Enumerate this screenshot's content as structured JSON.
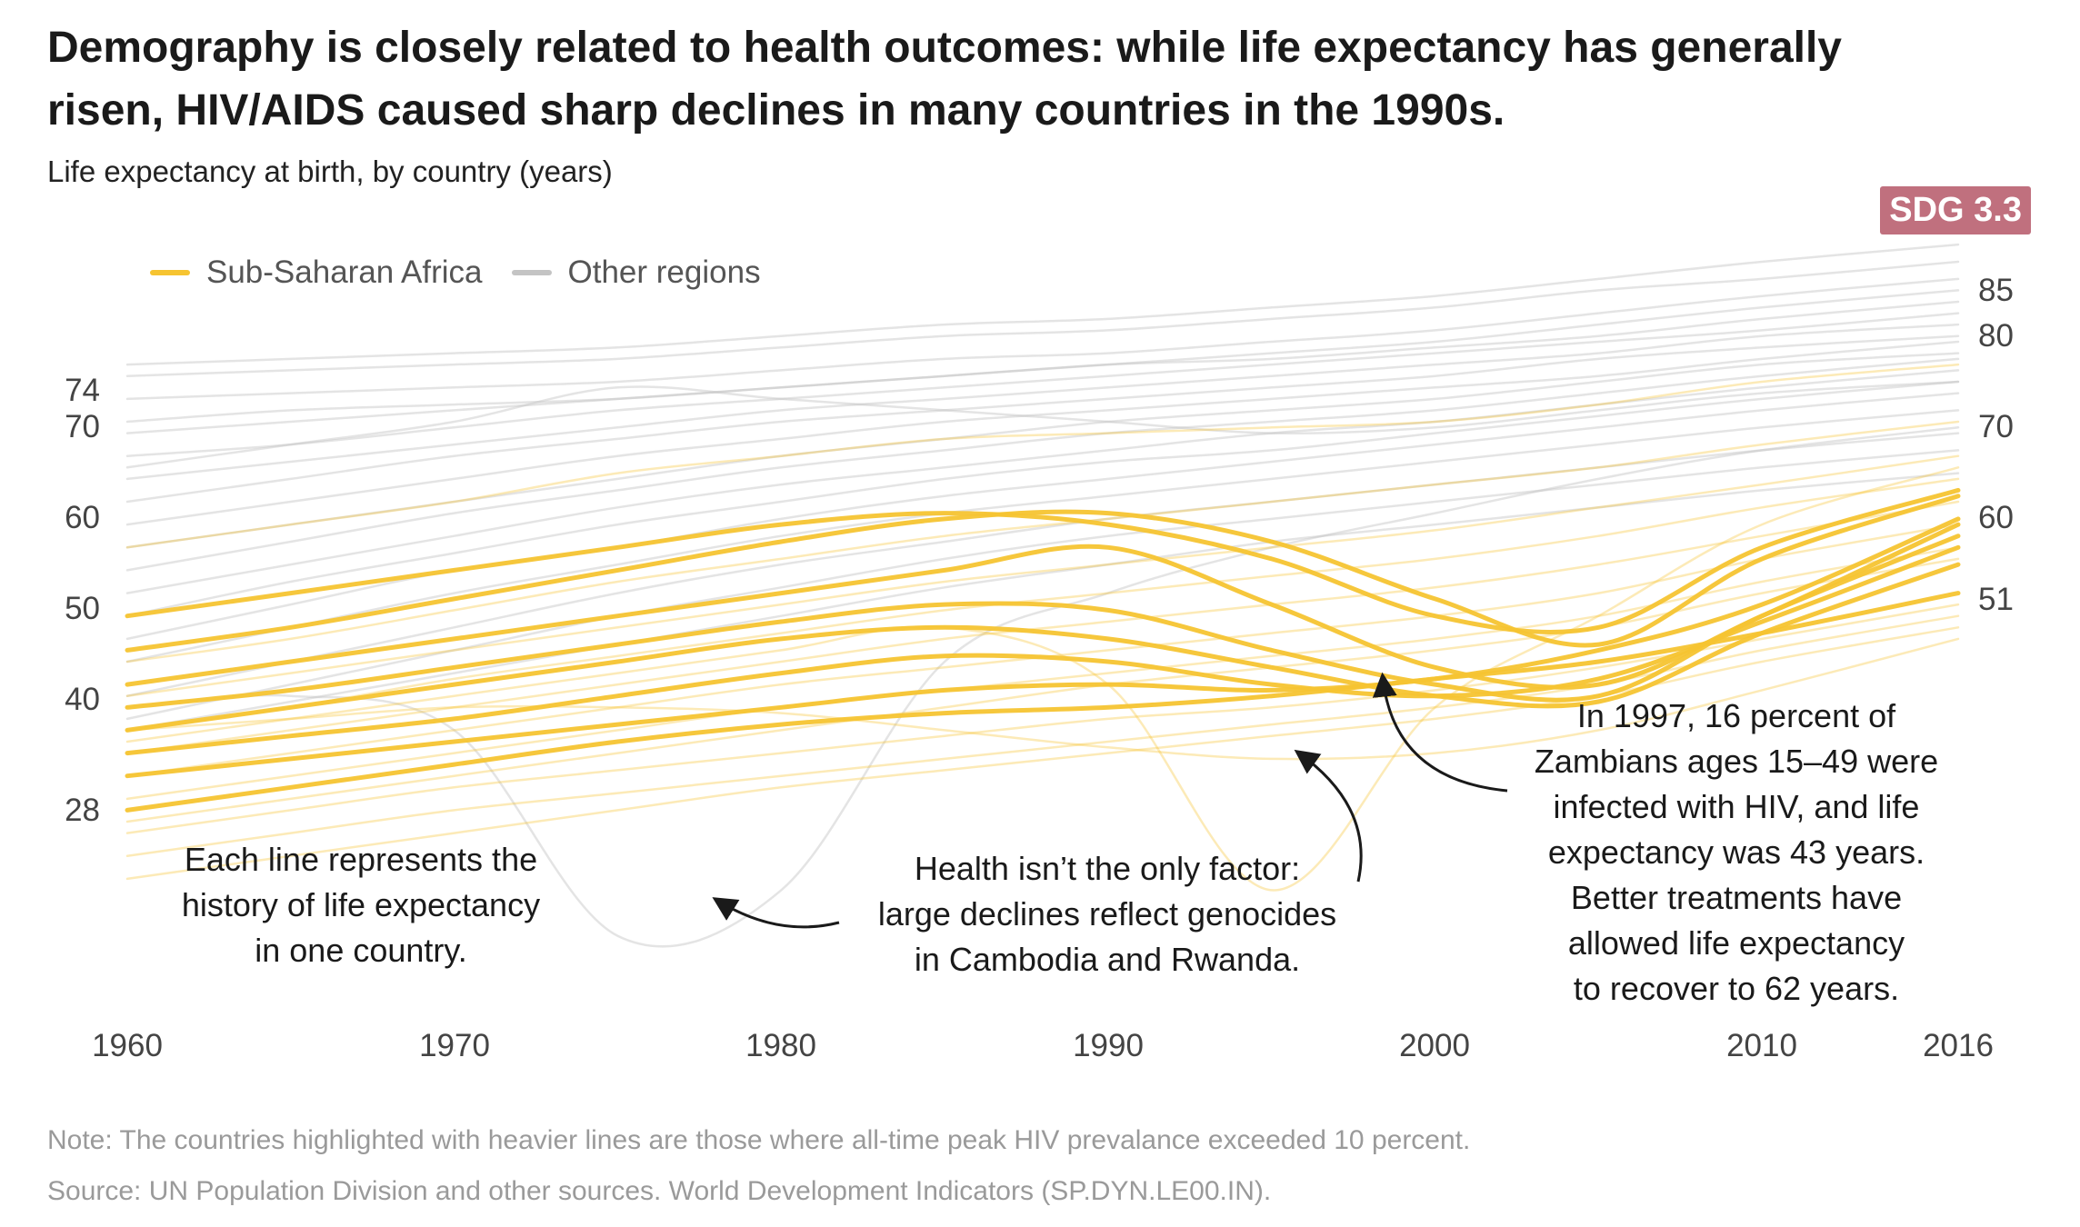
{
  "header": {
    "title": "Demography is closely related to health outcomes: while life expectancy has generally risen, HIV/AIDS caused sharp declines in many countries in the 1990s.",
    "subtitle": "Life expectancy at birth, by country (years)",
    "badge": "SDG 3.3",
    "badge_color": "#c0707e"
  },
  "legend": [
    {
      "label": "Sub-Saharan Africa",
      "color": "#f6c431"
    },
    {
      "label": "Other regions",
      "color": "#c4c4c4"
    }
  ],
  "annotations": [
    {
      "lines": [
        "Each line represents the",
        "history of life expectancy",
        "in one country."
      ]
    },
    {
      "lines": [
        "Health isn’t the only factor:",
        "large declines reflect genocides",
        "in Cambodia and Rwanda."
      ]
    },
    {
      "lines": [
        "In 1997, 16 percent of",
        "Zambians ages 15–49 were",
        "infected with HIV, and life",
        "expectancy was 43 years.",
        "Better treatments have",
        "allowed life expectancy",
        "to recover to 62 years."
      ]
    }
  ],
  "footer": {
    "note": "Note: The countries highlighted with heavier lines are those where all-time peak HIV prevalance exceeded 10 percent.",
    "source": "Source: UN Population Division and other sources. World Development Indicators (SP.DYN.LE00.IN)."
  },
  "chart_data": {
    "type": "line",
    "x_ticks": [
      "1960",
      "1970",
      "1980",
      "1990",
      "2000",
      "2010",
      "2016"
    ],
    "x_range": [
      1960,
      2016
    ],
    "y_range": [
      20,
      90
    ],
    "left_labels": [
      "74",
      "70",
      "60",
      "50",
      "40",
      "28"
    ],
    "right_labels": [
      "85",
      "80",
      "70",
      "60",
      "51"
    ],
    "grid": false,
    "legend_position": "top-left",
    "x": [
      1960,
      1965,
      1970,
      1975,
      1980,
      1985,
      1990,
      1995,
      2000,
      2005,
      2010,
      2016
    ],
    "series": [
      {
        "group": "other",
        "weight": "light",
        "values": [
          74,
          74.5,
          75,
          75.5,
          76.5,
          77.5,
          78,
          79,
          80,
          81.5,
          83,
          84.5
        ]
      },
      {
        "group": "other",
        "weight": "light",
        "values": [
          73,
          73.5,
          74,
          74.5,
          75.5,
          76.5,
          77,
          78,
          79,
          80.5,
          81.5,
          83
        ]
      },
      {
        "group": "other",
        "weight": "light",
        "values": [
          71,
          71.5,
          72,
          72.5,
          73.5,
          74.5,
          75,
          76,
          77,
          78.5,
          80,
          81.5
        ]
      },
      {
        "group": "other",
        "weight": "light",
        "values": [
          69,
          70,
          70.5,
          71,
          72,
          73,
          74,
          75,
          76,
          77.5,
          79,
          80.5
        ]
      },
      {
        "group": "other",
        "weight": "light",
        "values": [
          68,
          69,
          70,
          71,
          72,
          73,
          74,
          74.5,
          75.5,
          76.5,
          78,
          79.5
        ]
      },
      {
        "group": "other",
        "weight": "light",
        "values": [
          66,
          67,
          68.5,
          70,
          71,
          72,
          73,
          74,
          75,
          76,
          77,
          78.5
        ]
      },
      {
        "group": "other",
        "weight": "light",
        "values": [
          64,
          65.5,
          67,
          68.5,
          70,
          71,
          72,
          73,
          74,
          75,
          76.5,
          77.5
        ]
      },
      {
        "group": "other",
        "weight": "light",
        "values": [
          62,
          64,
          66,
          67.5,
          69,
          70,
          71,
          72,
          73,
          74.5,
          75.5,
          76.5
        ]
      },
      {
        "group": "other",
        "weight": "light",
        "values": [
          60,
          62,
          64,
          66,
          67.5,
          69,
          70,
          71,
          72,
          73,
          74.5,
          76
        ]
      },
      {
        "group": "other",
        "weight": "light",
        "values": [
          58,
          60,
          62,
          64,
          66,
          67.5,
          69,
          70,
          71,
          72.5,
          74,
          75
        ]
      },
      {
        "group": "other",
        "weight": "light",
        "values": [
          56,
          58.5,
          61,
          63,
          65,
          66.5,
          68,
          69,
          70,
          71.5,
          73,
          74.5
        ]
      },
      {
        "group": "other",
        "weight": "light",
        "values": [
          54,
          56.5,
          59,
          61.5,
          63.5,
          65,
          66.5,
          68,
          69,
          70.5,
          72,
          73.5
        ]
      },
      {
        "group": "other",
        "weight": "light",
        "values": [
          52,
          55,
          57.5,
          60,
          62,
          64,
          65.5,
          66.5,
          68,
          69.5,
          71,
          72.5
        ]
      },
      {
        "group": "other",
        "weight": "light",
        "values": [
          50,
          53,
          56,
          58,
          60.5,
          62.5,
          64,
          65.5,
          67,
          68.5,
          70,
          71.5
        ]
      },
      {
        "group": "other",
        "weight": "light",
        "values": [
          48,
          51,
          54,
          56.5,
          59,
          61,
          62.5,
          64,
          65.5,
          67,
          68.5,
          70
        ]
      },
      {
        "group": "other",
        "weight": "light",
        "values": [
          45,
          48,
          51,
          54,
          56.5,
          58.5,
          60.5,
          62,
          63.5,
          65,
          66.5,
          68
        ]
      },
      {
        "group": "other",
        "weight": "light",
        "values": [
          43,
          46,
          49,
          52,
          54.5,
          57,
          59,
          60.5,
          62,
          63.5,
          65,
          66.5
        ]
      },
      {
        "group": "other",
        "weight": "light",
        "values": [
          42,
          44.5,
          47,
          49.5,
          52,
          54.5,
          56.5,
          58.5,
          60,
          61.5,
          63,
          64.5
        ]
      },
      {
        "group": "other",
        "weight": "light",
        "values": [
          44,
          45,
          42,
          24,
          28,
          48,
          54,
          58,
          61,
          64,
          66.5,
          68.5
        ]
      },
      {
        "group": "other",
        "weight": "light",
        "values": [
          65,
          67,
          69,
          72,
          71,
          70,
          69,
          68,
          68.5,
          70,
          71.5,
          72.5
        ]
      },
      {
        "group": "ssa",
        "weight": "heavy",
        "values": [
          52,
          54,
          56,
          58,
          60,
          61,
          60,
          57,
          52,
          51,
          58,
          63
        ]
      },
      {
        "group": "ssa",
        "weight": "heavy",
        "values": [
          49,
          51,
          53.5,
          56,
          58.5,
          60.5,
          61,
          58.5,
          53.5,
          49.5,
          57,
          62.5
        ]
      },
      {
        "group": "ssa",
        "weight": "heavy",
        "values": [
          46,
          48,
          50,
          52,
          54,
          56,
          58,
          53,
          47.5,
          46,
          52,
          60
        ]
      },
      {
        "group": "ssa",
        "weight": "heavy",
        "values": [
          44,
          45.5,
          47.5,
          49.5,
          51.5,
          53,
          52.5,
          49,
          46,
          45,
          52,
          59
        ]
      },
      {
        "group": "ssa",
        "weight": "heavy",
        "values": [
          42,
          44,
          46,
          48,
          50,
          51,
          50,
          47.5,
          45,
          44.5,
          50.5,
          56.5
        ]
      },
      {
        "group": "ssa",
        "weight": "heavy",
        "values": [
          40,
          41.5,
          43,
          45,
          47,
          48.5,
          48,
          46,
          45,
          46.5,
          51.5,
          58
        ]
      },
      {
        "group": "ssa",
        "weight": "heavy",
        "values": [
          38,
          39.5,
          41,
          42.5,
          44,
          45.5,
          46,
          45.5,
          46.5,
          49,
          53,
          60.5
        ]
      },
      {
        "group": "ssa",
        "weight": "heavy",
        "values": [
          35,
          37,
          39,
          41,
          42.5,
          43.5,
          44,
          45,
          46.5,
          48,
          50.5,
          54
        ]
      },
      {
        "group": "ssa",
        "weight": "light",
        "values": [
          34,
          36,
          38,
          40,
          42,
          44,
          46,
          47.5,
          49,
          51,
          54,
          57
        ]
      },
      {
        "group": "ssa",
        "weight": "light",
        "values": [
          36,
          38,
          40,
          42,
          44,
          45.5,
          47,
          48.5,
          50,
          52,
          55,
          58
        ]
      },
      {
        "group": "ssa",
        "weight": "light",
        "values": [
          38,
          40,
          42,
          44,
          46,
          47.5,
          49,
          50.5,
          52,
          54,
          57,
          60
        ]
      },
      {
        "group": "ssa",
        "weight": "light",
        "values": [
          40,
          42,
          44,
          46,
          48,
          50,
          51.5,
          53,
          54.5,
          56.5,
          59,
          62
        ]
      },
      {
        "group": "ssa",
        "weight": "light",
        "values": [
          42,
          44,
          46.5,
          48.5,
          50.5,
          52.5,
          54,
          55.5,
          57,
          59,
          61.5,
          64
        ]
      },
      {
        "group": "ssa",
        "weight": "light",
        "values": [
          45,
          47,
          49,
          51,
          53,
          55,
          56.5,
          58,
          59.5,
          61.5,
          63.5,
          66
        ]
      },
      {
        "group": "ssa",
        "weight": "light",
        "values": [
          48,
          50,
          52.5,
          55,
          57,
          59,
          60.5,
          62,
          63.5,
          65,
          67,
          69
        ]
      },
      {
        "group": "ssa",
        "weight": "light",
        "values": [
          33,
          35,
          37,
          38.5,
          40,
          41.5,
          43,
          44,
          45.5,
          47.5,
          50,
          53
        ]
      },
      {
        "group": "ssa",
        "weight": "light",
        "values": [
          31,
          33,
          35,
          36.5,
          38,
          39.5,
          41,
          42.5,
          44,
          46,
          49,
          52
        ]
      },
      {
        "group": "ssa",
        "weight": "light",
        "values": [
          29,
          31,
          33,
          35,
          37,
          38.5,
          40,
          41.5,
          43,
          45,
          48,
          51
        ]
      },
      {
        "group": "ssa",
        "weight": "light",
        "values": [
          42,
          43,
          44,
          44,
          43.5,
          42,
          40.5,
          39.5,
          40,
          42,
          45.5,
          50
        ]
      },
      {
        "group": "ssa",
        "weight": "light",
        "values": [
          41,
          43,
          45,
          47,
          49,
          51,
          46,
          28,
          44,
          52,
          60,
          65
        ]
      },
      {
        "group": "ssa",
        "weight": "light",
        "values": [
          58,
          60,
          62,
          64.5,
          66,
          67.5,
          68,
          68.5,
          69,
          70.5,
          72.5,
          74
        ]
      }
    ]
  }
}
